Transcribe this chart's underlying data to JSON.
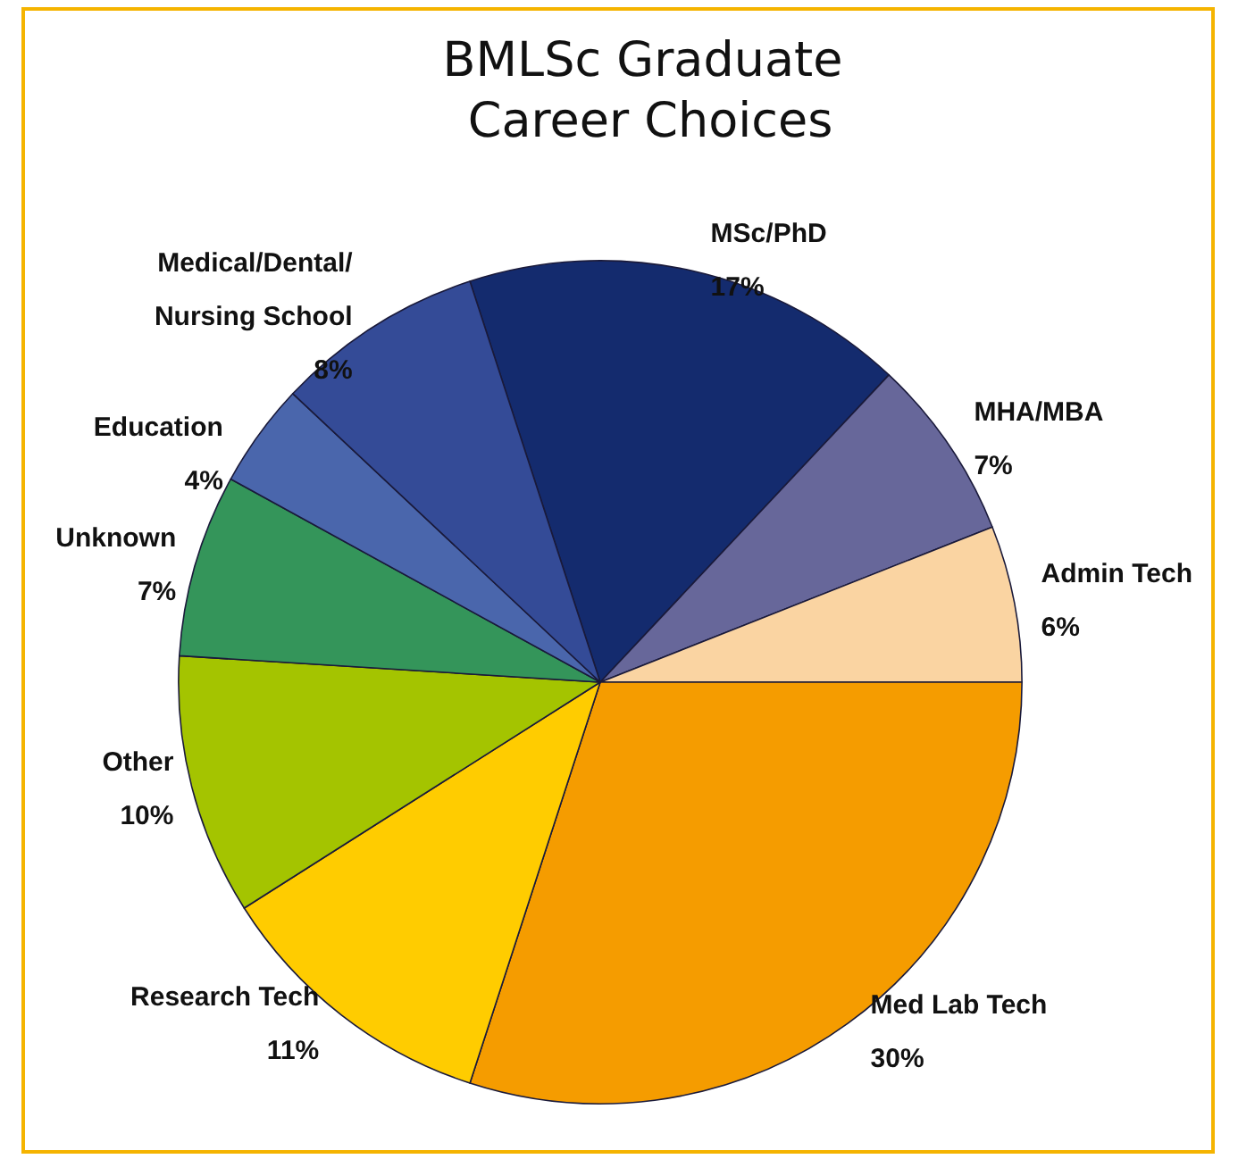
{
  "chart_data": {
    "type": "pie",
    "title": "BMLSc Graduate Career Choices",
    "categories": [
      "MSc/PhD",
      "MHA/MBA",
      "Admin Tech",
      "Med Lab Tech",
      "Research Tech",
      "Other",
      "Unknown",
      "Education",
      "Medical/Dental/Nursing School"
    ],
    "values": [
      17,
      7,
      6,
      30,
      11,
      10,
      7,
      4,
      8
    ],
    "colors": [
      "#142b6e",
      "#67679a",
      "#fad4a2",
      "#f59c00",
      "#ffcc00",
      "#a4c400",
      "#34955a",
      "#4a66ac",
      "#344b97"
    ],
    "value_labels": [
      "17%",
      "7%",
      "6%",
      "30%",
      "11%",
      "10%",
      "7%",
      "4%",
      "8%"
    ],
    "legend": false
  }
}
